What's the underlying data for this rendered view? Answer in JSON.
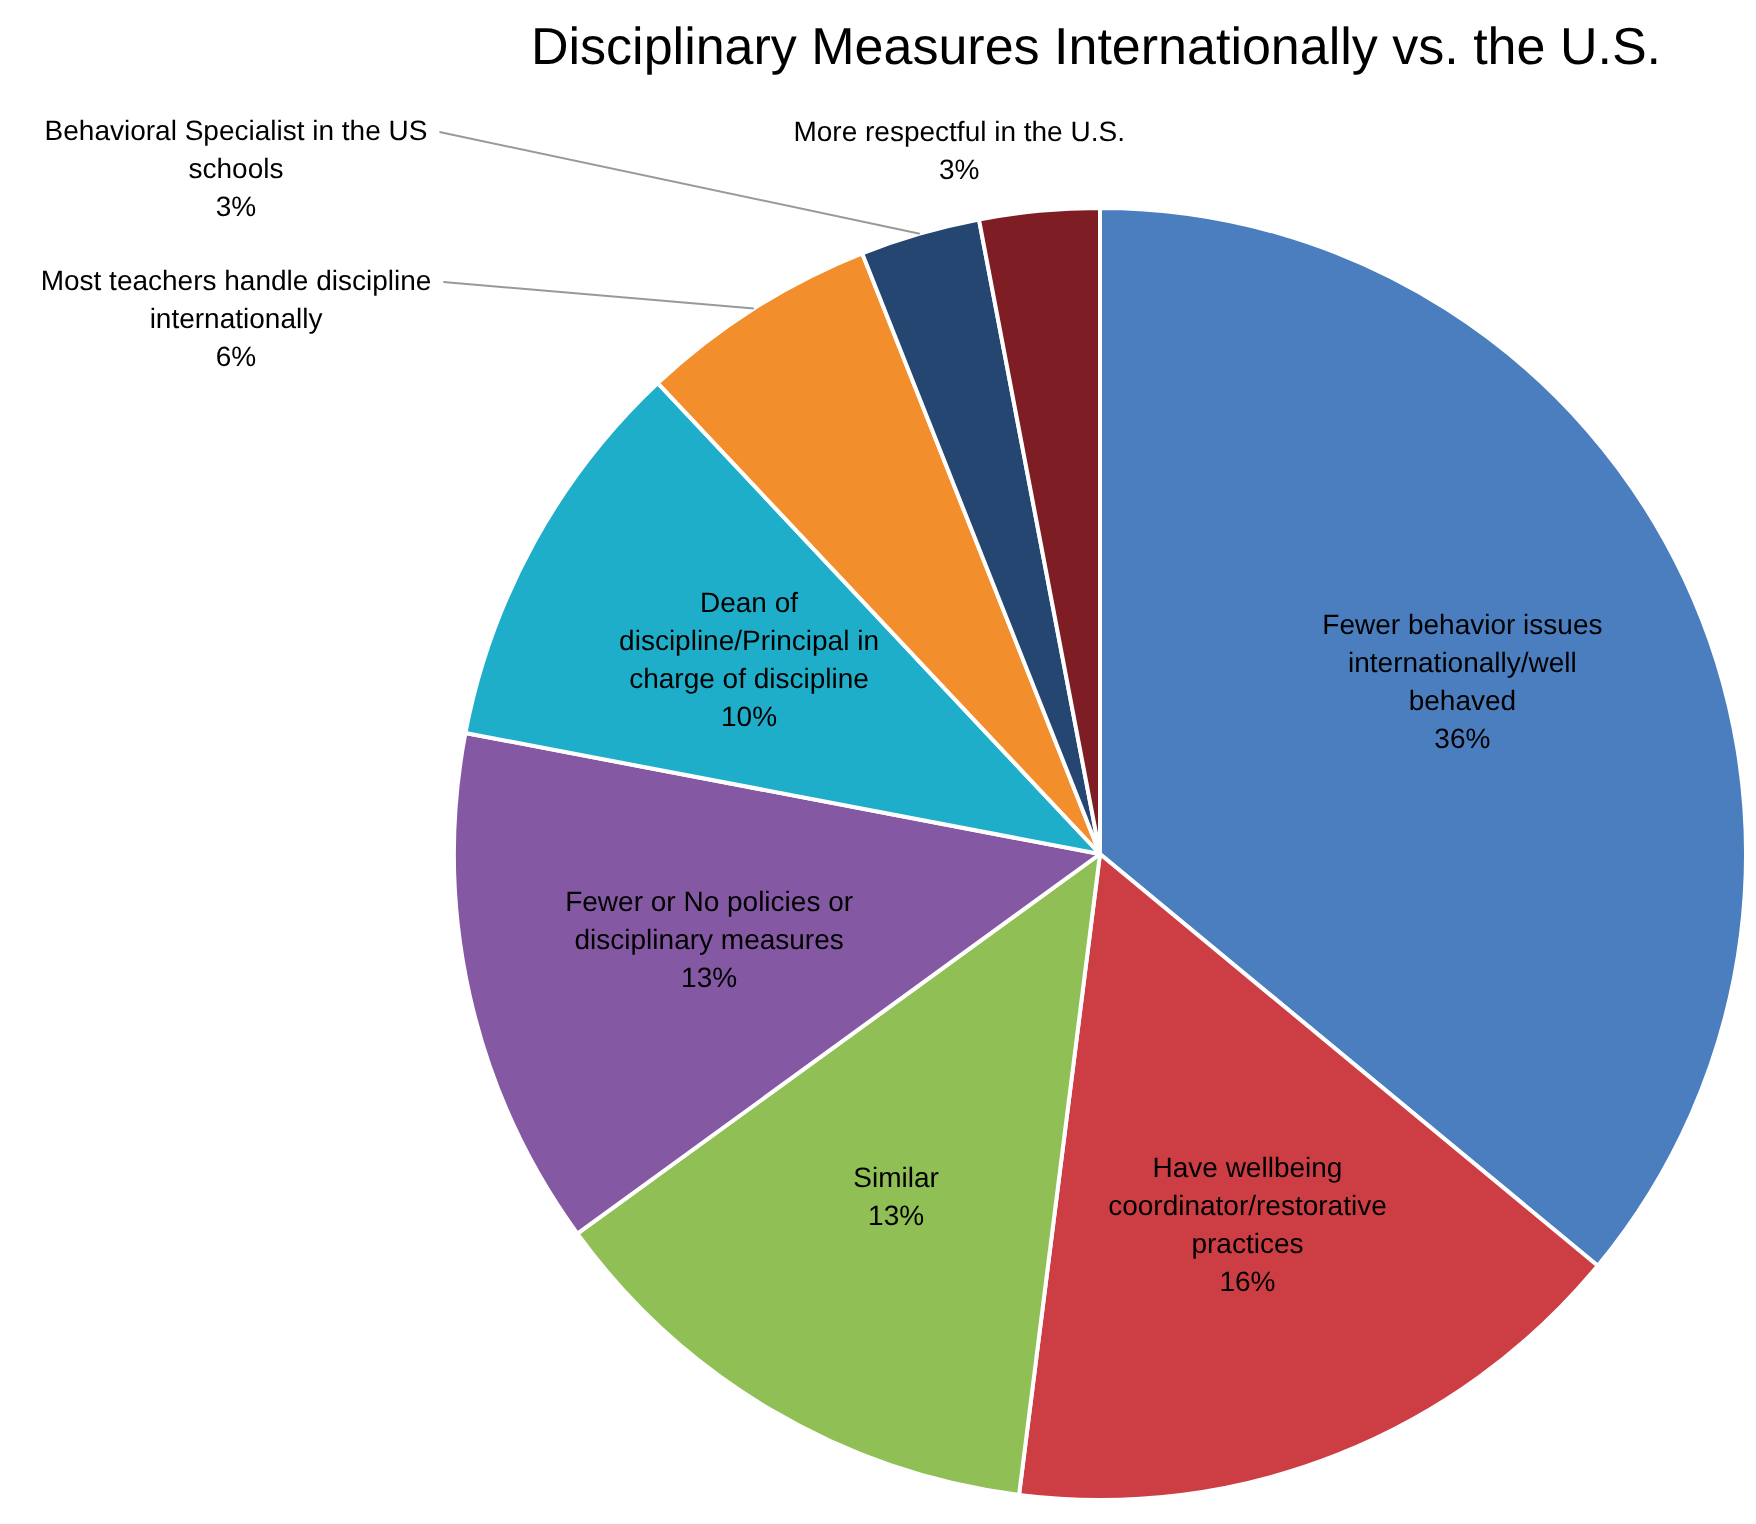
{
  "chart_data": {
    "type": "pie",
    "title": "Disciplinary Measures Internationally vs. the U.S.",
    "categories": [
      "Fewer behavior issues internationally/well behaved",
      "Have wellbeing coordinator/restorative practices",
      "Similar",
      "Fewer or No policies or disciplinary measures",
      "Dean of discipline/Principal in charge of discipline",
      "Most teachers handle discipline internationally",
      "Behavioral Specialist in the US schools",
      "More respectful in the U.S."
    ],
    "values": [
      36,
      16,
      13,
      13,
      10,
      6,
      3,
      3
    ],
    "value_labels": [
      "36%",
      "16%",
      "13%",
      "13%",
      "10%",
      "6%",
      "3%",
      "3%"
    ],
    "colors": [
      "#4a7ebf",
      "#cc3e44",
      "#8fbf55",
      "#8458a3",
      "#1eaec9",
      "#f28e2b",
      "#264672",
      "#7f1d24"
    ],
    "legend": false
  }
}
